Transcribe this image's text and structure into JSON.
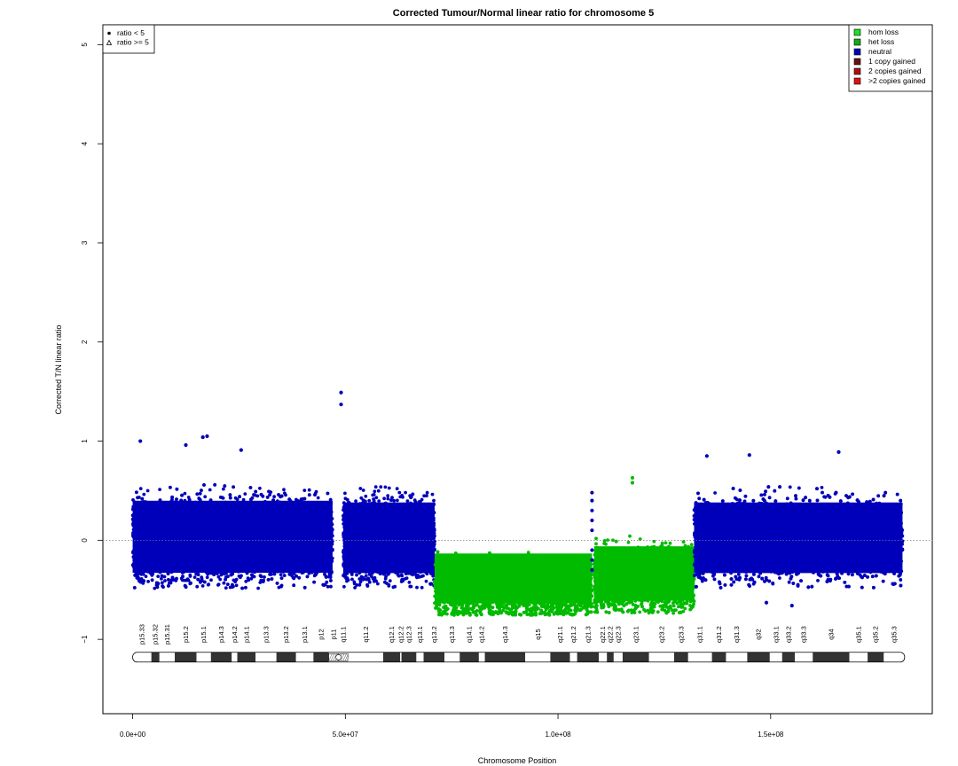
{
  "chart_data": {
    "type": "scatter",
    "title": "Corrected Tumour/Normal linear ratio for chromosome  5",
    "xlabel": "Chromosome Position",
    "ylabel": "Corrected T/N linear ratio",
    "xlim": [
      -7000000,
      188000000
    ],
    "ylim": [
      -1.75,
      5.2
    ],
    "x_ticks": [
      0,
      50000000,
      100000000,
      150000000
    ],
    "x_tick_labels": [
      "0.0e+00",
      "5.0e+07",
      "1.0e+08",
      "1.5e+08"
    ],
    "y_ticks": [
      -1,
      0,
      1,
      2,
      3,
      4,
      5
    ],
    "y_tick_labels": [
      "−1",
      "0",
      "1",
      "2",
      "3",
      "4",
      "5"
    ],
    "reference_line": 0,
    "shape_legend": {
      "position": "top-left",
      "items": [
        {
          "label": "ratio < 5",
          "symbol": "filled-circle"
        },
        {
          "label": "ratio >= 5",
          "symbol": "open-triangle"
        }
      ]
    },
    "cn_legend": {
      "position": "top-right",
      "items": [
        {
          "label": "hom loss",
          "color": "#22dd22"
        },
        {
          "label": "het loss",
          "color": "#11aa11"
        },
        {
          "label": "neutral",
          "color": "#0000bb"
        },
        {
          "label": "1 copy gained",
          "color": "#661111"
        },
        {
          "label": "2 copies gained",
          "color": "#aa1111"
        },
        {
          "label": ">2 copies gained",
          "color": "#dd1111"
        }
      ]
    },
    "segments": [
      {
        "state": "neutral",
        "color": "#0000bb",
        "x_start": 0,
        "x_end": 47000000,
        "center": 0.0,
        "low": -0.45,
        "high": 0.52
      },
      {
        "state": "neutral",
        "color": "#0000bb",
        "x_start": 49500000,
        "x_end": 71000000,
        "center": 0.0,
        "low": -0.45,
        "high": 0.5
      },
      {
        "state": "het loss",
        "color": "#00bb00",
        "x_start": 71000000,
        "x_end": 108000000,
        "center": -0.5,
        "low": -0.72,
        "high": -0.05
      },
      {
        "state": "het loss",
        "color": "#00bb00",
        "x_start": 108500000,
        "x_end": 132000000,
        "center": -0.4,
        "low": -0.7,
        "high": 0.03
      },
      {
        "state": "neutral",
        "color": "#0000bb",
        "x_start": 132000000,
        "x_end": 181000000,
        "center": 0.0,
        "low": -0.45,
        "high": 0.5
      }
    ],
    "notable_points": [
      {
        "x": 49000000,
        "y": 1.49,
        "state": "neutral"
      },
      {
        "x": 49000000,
        "y": 1.37,
        "state": "neutral"
      },
      {
        "x": 17500000,
        "y": 1.05,
        "state": "neutral"
      },
      {
        "x": 16500000,
        "y": 1.04,
        "state": "neutral"
      },
      {
        "x": 1800000,
        "y": 1.0,
        "state": "neutral"
      },
      {
        "x": 12500000,
        "y": 0.96,
        "state": "neutral"
      },
      {
        "x": 25500000,
        "y": 0.91,
        "state": "neutral"
      },
      {
        "x": 166000000,
        "y": 0.89,
        "state": "neutral"
      },
      {
        "x": 145000000,
        "y": 0.86,
        "state": "neutral"
      },
      {
        "x": 135000000,
        "y": 0.85,
        "state": "neutral"
      },
      {
        "x": 117500000,
        "y": 0.63,
        "state": "het loss"
      },
      {
        "x": 117500000,
        "y": 0.58,
        "state": "het loss"
      },
      {
        "x": 108000000,
        "y": 0.48,
        "state": "neutral"
      },
      {
        "x": 108000000,
        "y": 0.4,
        "state": "neutral"
      },
      {
        "x": 108000000,
        "y": 0.3,
        "state": "neutral"
      },
      {
        "x": 108000000,
        "y": 0.2,
        "state": "neutral"
      },
      {
        "x": 108000000,
        "y": 0.1,
        "state": "neutral"
      },
      {
        "x": 108000000,
        "y": -0.1,
        "state": "neutral"
      },
      {
        "x": 108000000,
        "y": -0.2,
        "state": "neutral"
      },
      {
        "x": 108000000,
        "y": -0.3,
        "state": "neutral"
      },
      {
        "x": 149000000,
        "y": -0.63,
        "state": "neutral"
      },
      {
        "x": 155000000,
        "y": -0.66,
        "state": "neutral"
      }
    ],
    "ideogram": {
      "y": -1.18,
      "label_y": -0.95,
      "bands": [
        {
          "name": "p15.33",
          "start": 0,
          "end": 4400000,
          "stain": "gneg"
        },
        {
          "name": "p15.32",
          "start": 4400000,
          "end": 6300000,
          "stain": "gpos"
        },
        {
          "name": "p15.31",
          "start": 6300000,
          "end": 9900000,
          "stain": "gneg"
        },
        {
          "name": "p15.2",
          "start": 9900000,
          "end": 15000000,
          "stain": "gpos"
        },
        {
          "name": "p15.1",
          "start": 15000000,
          "end": 18400000,
          "stain": "gneg"
        },
        {
          "name": "p14.3",
          "start": 18400000,
          "end": 23300000,
          "stain": "gpos"
        },
        {
          "name": "p14.2",
          "start": 23300000,
          "end": 24600000,
          "stain": "gneg"
        },
        {
          "name": "p14.1",
          "start": 24600000,
          "end": 28900000,
          "stain": "gpos"
        },
        {
          "name": "p13.3",
          "start": 28900000,
          "end": 33800000,
          "stain": "gneg"
        },
        {
          "name": "p13.2",
          "start": 33800000,
          "end": 38400000,
          "stain": "gpos"
        },
        {
          "name": "p13.1",
          "start": 38400000,
          "end": 42500000,
          "stain": "gneg"
        },
        {
          "name": "p12",
          "start": 42500000,
          "end": 46100000,
          "stain": "gpos"
        },
        {
          "name": "p11",
          "start": 46100000,
          "end": 48400000,
          "stain": "acen"
        },
        {
          "name": "q11.1",
          "start": 48400000,
          "end": 50700000,
          "stain": "acen"
        },
        {
          "name": "q11.2",
          "start": 50700000,
          "end": 58900000,
          "stain": "gneg"
        },
        {
          "name": "q12.1",
          "start": 58900000,
          "end": 62900000,
          "stain": "gpos"
        },
        {
          "name": "q12.2",
          "start": 62900000,
          "end": 63200000,
          "stain": "gneg"
        },
        {
          "name": "q12.3",
          "start": 63200000,
          "end": 66700000,
          "stain": "gpos"
        },
        {
          "name": "q13.1",
          "start": 66700000,
          "end": 68400000,
          "stain": "gneg"
        },
        {
          "name": "q13.2",
          "start": 68400000,
          "end": 73300000,
          "stain": "gpos"
        },
        {
          "name": "q13.3",
          "start": 73300000,
          "end": 76900000,
          "stain": "gneg"
        },
        {
          "name": "q14.1",
          "start": 76900000,
          "end": 81400000,
          "stain": "gpos"
        },
        {
          "name": "q14.2",
          "start": 81400000,
          "end": 82800000,
          "stain": "gneg"
        },
        {
          "name": "q14.3",
          "start": 82800000,
          "end": 92300000,
          "stain": "gpos"
        },
        {
          "name": "q15",
          "start": 92300000,
          "end": 98200000,
          "stain": "gneg"
        },
        {
          "name": "q21.1",
          "start": 98200000,
          "end": 102800000,
          "stain": "gpos"
        },
        {
          "name": "q21.2",
          "start": 102800000,
          "end": 104500000,
          "stain": "gneg"
        },
        {
          "name": "q21.3",
          "start": 104500000,
          "end": 109600000,
          "stain": "gpos"
        },
        {
          "name": "q22.1",
          "start": 109600000,
          "end": 111500000,
          "stain": "gneg"
        },
        {
          "name": "q22.2",
          "start": 111500000,
          "end": 113100000,
          "stain": "gpos"
        },
        {
          "name": "q22.3",
          "start": 113100000,
          "end": 115200000,
          "stain": "gneg"
        },
        {
          "name": "q23.1",
          "start": 115200000,
          "end": 121400000,
          "stain": "gpos"
        },
        {
          "name": "q23.2",
          "start": 121400000,
          "end": 127300000,
          "stain": "gneg"
        },
        {
          "name": "q23.3",
          "start": 127300000,
          "end": 130600000,
          "stain": "gpos"
        },
        {
          "name": "q31.1",
          "start": 130600000,
          "end": 136200000,
          "stain": "gneg"
        },
        {
          "name": "q31.2",
          "start": 136200000,
          "end": 139500000,
          "stain": "gpos"
        },
        {
          "name": "q31.3",
          "start": 139500000,
          "end": 144500000,
          "stain": "gneg"
        },
        {
          "name": "q32",
          "start": 144500000,
          "end": 149800000,
          "stain": "gpos"
        },
        {
          "name": "q33.1",
          "start": 149800000,
          "end": 152700000,
          "stain": "gneg"
        },
        {
          "name": "q33.2",
          "start": 152700000,
          "end": 155700000,
          "stain": "gpos"
        },
        {
          "name": "q33.3",
          "start": 155700000,
          "end": 159900000,
          "stain": "gneg"
        },
        {
          "name": "q34",
          "start": 159900000,
          "end": 168500000,
          "stain": "gpos"
        },
        {
          "name": "q35.1",
          "start": 168500000,
          "end": 172800000,
          "stain": "gneg"
        },
        {
          "name": "q35.2",
          "start": 172800000,
          "end": 176600000,
          "stain": "gpos"
        },
        {
          "name": "q35.3",
          "start": 176600000,
          "end": 181500000,
          "stain": "gneg"
        }
      ]
    },
    "grid": false
  }
}
